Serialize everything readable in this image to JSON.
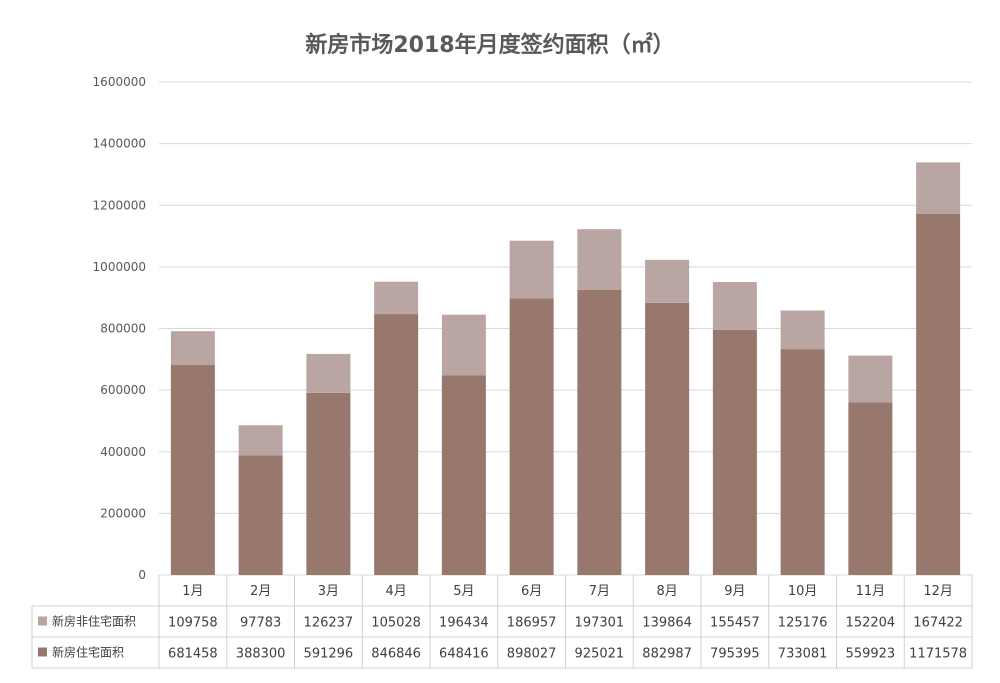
{
  "chart_data": {
    "type": "bar",
    "stacked": true,
    "title": "新房市场2018年月度签约面积（㎡）",
    "categories": [
      "1月",
      "2月",
      "3月",
      "4月",
      "5月",
      "6月",
      "7月",
      "8月",
      "9月",
      "10月",
      "11月",
      "12月"
    ],
    "series": [
      {
        "name": "新房住宅面积",
        "color": "#98776D",
        "values": [
          681458,
          388300,
          591296,
          846846,
          648416,
          898027,
          925021,
          882987,
          795395,
          733081,
          559923,
          1171578
        ]
      },
      {
        "name": "新房非住宅面积",
        "color": "#B9A6A2",
        "values": [
          109758,
          97783,
          126237,
          105028,
          196434,
          186957,
          197301,
          139864,
          155457,
          125176,
          152204,
          167422
        ]
      }
    ],
    "table_order": [
      1,
      0
    ],
    "ylim": [
      0,
      1600000
    ],
    "yticks": [
      0,
      200000,
      400000,
      600000,
      800000,
      1000000,
      1200000,
      1400000,
      1600000
    ],
    "grid": true,
    "legend": "data-table"
  }
}
